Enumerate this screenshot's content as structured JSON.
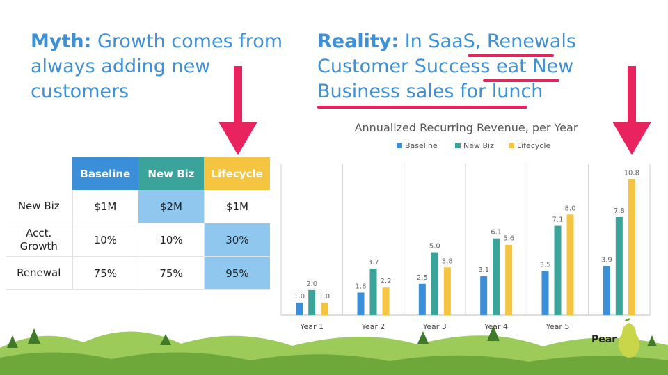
{
  "myth": {
    "lead": "Myth:",
    "text": " Growth comes from always adding new customers"
  },
  "reality": {
    "lead": "Reality:",
    "text_1": " In SaaS, ",
    "underlined_1": "Renewals",
    "text_2": " Customer Success ",
    "underlined_2": "eat New Business sales for lunch"
  },
  "table": {
    "headers": [
      "",
      "Baseline",
      "New Biz",
      "Lifecycle"
    ],
    "rows": [
      {
        "label": "New Biz",
        "cells": [
          "$1M",
          "$2M",
          "$1M"
        ]
      },
      {
        "label": "Acct. Growth",
        "cells": [
          "10%",
          "10%",
          "30%"
        ]
      },
      {
        "label": "Renewal",
        "cells": [
          "75%",
          "75%",
          "95%"
        ]
      }
    ],
    "header_colors": [
      "#3b8fd9",
      "#3aa39a",
      "#f5c542"
    ],
    "highlight_color": "#8fc7ee"
  },
  "chart_data": {
    "type": "bar",
    "title": "Annualized Recurring Revenue, per Year",
    "categories": [
      "Year 1",
      "Year 2",
      "Year 3",
      "Year 4",
      "Year 5",
      ""
    ],
    "series": [
      {
        "name": "Baseline",
        "color": "#3b8fd9",
        "values": [
          1.0,
          1.8,
          2.5,
          3.1,
          3.5,
          3.9
        ]
      },
      {
        "name": "New Biz",
        "color": "#3aa39a",
        "values": [
          2.0,
          3.7,
          5.0,
          6.1,
          7.1,
          7.8
        ]
      },
      {
        "name": "Lifecycle",
        "color": "#f5c542",
        "values": [
          1.0,
          2.2,
          3.8,
          5.6,
          8.0,
          10.8
        ]
      }
    ],
    "ylim": [
      0,
      12
    ],
    "legend": "top",
    "grid": false
  },
  "accent_color": "#e8235e",
  "brand": {
    "name": "Pear",
    "icon": "pear-logo-icon"
  }
}
